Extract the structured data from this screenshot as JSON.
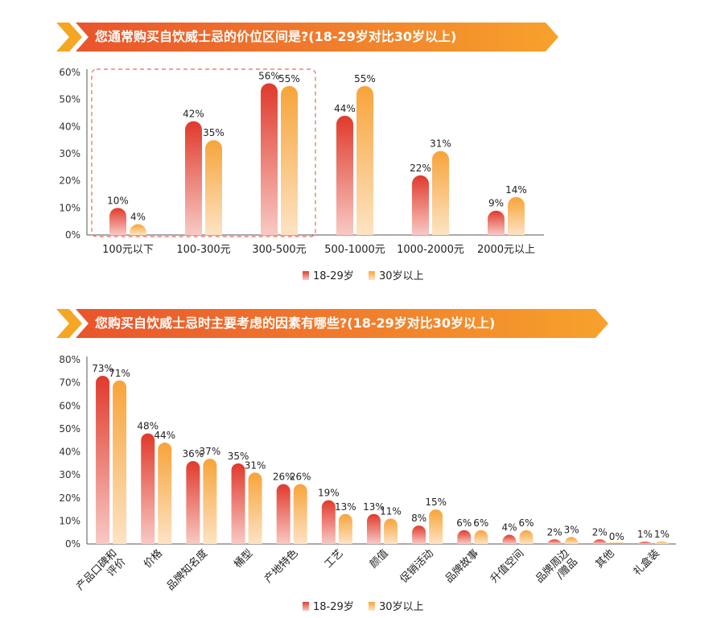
{
  "colors": {
    "banner_from": "#ea5a2e",
    "banner_to": "#f7a02c",
    "series1_top": "#e03a2c",
    "series1_bottom": "#f8c9c4",
    "series2_top": "#f7a43a",
    "series2_bottom": "#fde3c4",
    "highlight_box": "#e26b5a"
  },
  "chart_data": [
    {
      "type": "bar",
      "title": "您通常购买自饮威士忌的价位区间是?(18-29岁对比30岁以上)",
      "categories": [
        "100元以下",
        "100-300元",
        "300-500元",
        "500-1000元",
        "1000-2000元",
        "2000元以上"
      ],
      "series": [
        {
          "name": "18-29岁",
          "values": [
            10,
            42,
            56,
            44,
            22,
            9
          ]
        },
        {
          "name": "30岁以上",
          "values": [
            4,
            35,
            55,
            55,
            31,
            14
          ]
        }
      ],
      "ylim": [
        0,
        60
      ],
      "yticks": [
        "0%",
        "10%",
        "20%",
        "30%",
        "40%",
        "50%",
        "60%"
      ],
      "unit": "%",
      "highlighted_categories": [
        "100元以下",
        "100-300元",
        "300-500元"
      ],
      "legend_position": "bottom-center"
    },
    {
      "type": "bar",
      "title": "您购买自饮威士忌时主要考虑的因素有哪些?(18-29岁对比30岁以上)",
      "categories": [
        "产品口碑和评价",
        "价格",
        "品牌知名度",
        "桶型",
        "产地特色",
        "工艺",
        "颜值",
        "促销活动",
        "品牌故事",
        "升值空间",
        "品牌周边/赠品",
        "其他",
        "礼盒装"
      ],
      "category_lines": [
        [
          "产品口碑和",
          "评价"
        ],
        [
          "价格"
        ],
        [
          "品牌知名度"
        ],
        [
          "桶型"
        ],
        [
          "产地特色"
        ],
        [
          "工艺"
        ],
        [
          "颜值"
        ],
        [
          "促销活动"
        ],
        [
          "品牌故事"
        ],
        [
          "升值空间"
        ],
        [
          "品牌周边",
          "/赠品"
        ],
        [
          "其他"
        ],
        [
          "礼盒装"
        ]
      ],
      "series": [
        {
          "name": "18-29岁",
          "values": [
            73,
            48,
            36,
            35,
            26,
            19,
            13,
            8,
            6,
            4,
            2,
            2,
            1
          ]
        },
        {
          "name": "30岁以上",
          "values": [
            71,
            44,
            37,
            31,
            26,
            13,
            11,
            15,
            6,
            6,
            3,
            0,
            1
          ]
        }
      ],
      "ylim": [
        0,
        80
      ],
      "yticks": [
        "0%",
        "10%",
        "20%",
        "30%",
        "40%",
        "50%",
        "60%",
        "70%",
        "80%"
      ],
      "unit": "%",
      "legend_position": "bottom-center"
    }
  ]
}
